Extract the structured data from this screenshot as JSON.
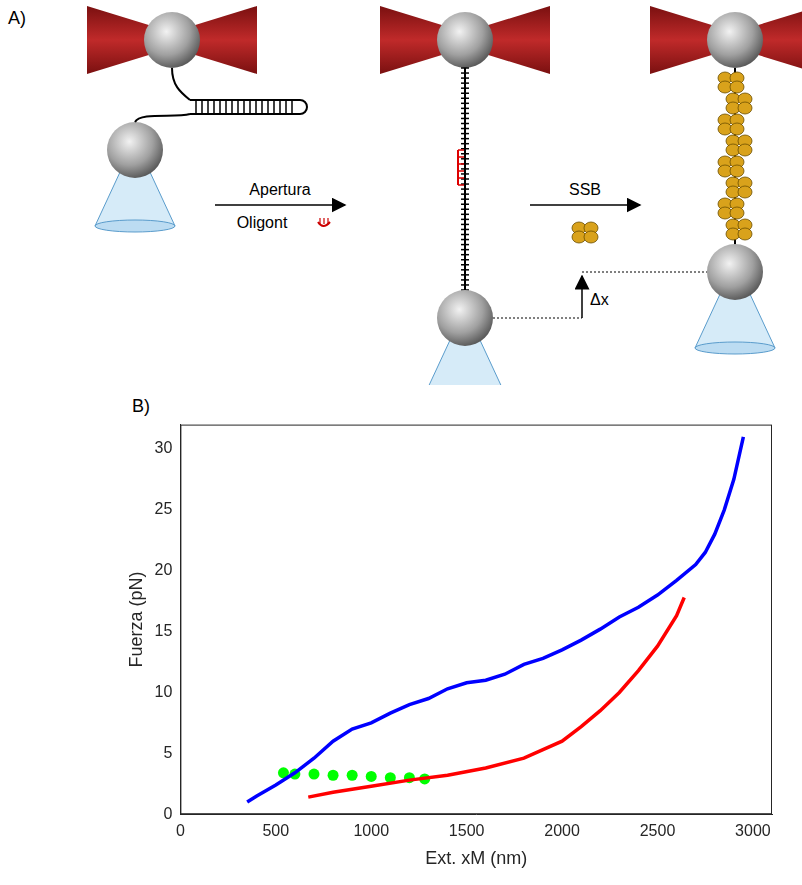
{
  "panel_labels": [
    "A)",
    "B)"
  ],
  "diagram": {
    "steps": [
      {
        "label": "Apertura",
        "sublabel": "Oligont"
      },
      {
        "label": "SSB"
      }
    ],
    "displacement": "Δx"
  },
  "chart_data": {
    "type": "line",
    "x_label": "Ext. xM (nm)",
    "y_label": "Fuerza (pN)",
    "xlim": [
      0,
      3100
    ],
    "xticks": [
      0,
      500,
      1000,
      1500,
      2000,
      2500,
      3000
    ],
    "ylim": [
      0,
      32
    ],
    "yticks": [
      0,
      5,
      10,
      15,
      20,
      25,
      30
    ],
    "grid": false,
    "series": [
      {
        "color": "#0000ff",
        "line_style": "solid",
        "x": [
          350,
          400,
          500,
          600,
          700,
          800,
          900,
          1000,
          1100,
          1200,
          1300,
          1400,
          1500,
          1600,
          1700,
          1800,
          1900,
          2000,
          2100,
          2200,
          2300,
          2400,
          2500,
          2600,
          2700,
          2750,
          2800,
          2850,
          2900,
          2950
        ],
        "values": [
          1.0,
          1.5,
          2.4,
          3.4,
          4.6,
          6.0,
          7.0,
          7.5,
          8.3,
          9.0,
          9.5,
          10.3,
          10.8,
          11.0,
          11.5,
          12.3,
          12.8,
          13.5,
          14.3,
          15.2,
          16.2,
          17.0,
          18.0,
          19.2,
          20.5,
          21.5,
          23.0,
          25.0,
          27.5,
          31.0
        ]
      },
      {
        "color": "#ff0000",
        "line_style": "solid",
        "x": [
          670,
          800,
          1000,
          1200,
          1400,
          1600,
          1800,
          1900,
          2000,
          2100,
          2200,
          2300,
          2400,
          2500,
          2600,
          2640
        ],
        "values": [
          1.4,
          1.8,
          2.3,
          2.8,
          3.2,
          3.8,
          4.6,
          5.3,
          6.0,
          7.2,
          8.5,
          10.0,
          11.8,
          13.8,
          16.3,
          17.8
        ]
      },
      {
        "color": "#00ff00",
        "marker": "circle",
        "x": [
          540,
          600,
          700,
          800,
          900,
          1000,
          1100,
          1200,
          1280
        ],
        "values": [
          3.4,
          3.3,
          3.3,
          3.2,
          3.2,
          3.1,
          3.0,
          3.0,
          2.9
        ]
      }
    ]
  }
}
